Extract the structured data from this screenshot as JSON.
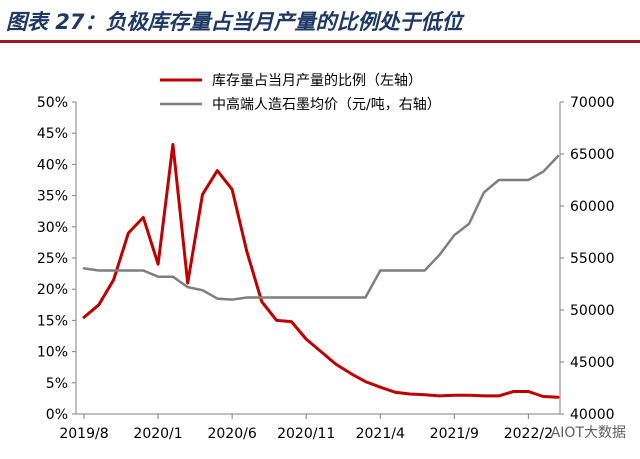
{
  "title": "图表 27：负极库存量占当月产量的比例处于低位",
  "watermark": "AIOT大数据",
  "colors": {
    "title": "#1f3864",
    "accent": "#9b1b1e",
    "inventory_ratio": "#c00000",
    "graphite_price": "#7f7f7f"
  },
  "chart_data": {
    "type": "line",
    "grid": false,
    "legend_position": "top-center",
    "x_tick_labels": [
      "2019/8",
      "2020/1",
      "2020/6",
      "2020/11",
      "2021/4",
      "2021/9",
      "2022/2"
    ],
    "ylim_left": [
      0,
      50
    ],
    "y_left_ticks": [
      "0%",
      "5%",
      "10%",
      "15%",
      "20%",
      "25%",
      "30%",
      "35%",
      "40%",
      "45%",
      "50%"
    ],
    "ylim_right": [
      40000,
      70000
    ],
    "y_right_ticks": [
      "40000",
      "45000",
      "50000",
      "55000",
      "60000",
      "65000",
      "70000"
    ],
    "series": [
      {
        "name": "库存量占当月产量的比例（左轴）",
        "axis": "left",
        "color": "#c00000",
        "x": [
          "2019-08",
          "2019-09",
          "2019-10",
          "2019-11",
          "2019-12",
          "2020-01",
          "2020-02",
          "2020-03",
          "2020-04",
          "2020-05",
          "2020-06",
          "2020-07",
          "2020-08",
          "2020-09",
          "2020-10",
          "2020-11",
          "2020-12",
          "2021-01",
          "2021-02",
          "2021-03",
          "2021-04",
          "2021-05",
          "2021-06",
          "2021-07",
          "2021-08",
          "2021-09",
          "2021-10",
          "2021-11",
          "2021-12",
          "2022-01",
          "2022-02",
          "2022-03",
          "2022-04"
        ],
        "values": [
          15.5,
          17.5,
          21.5,
          29,
          31.5,
          24,
          43.2,
          21,
          35.2,
          39,
          36,
          26,
          18,
          15,
          14.8,
          12,
          10,
          8,
          6.5,
          5.2,
          4.3,
          3.5,
          3.2,
          3.1,
          2.9,
          3.0,
          3.0,
          2.9,
          2.9,
          3.6,
          3.6,
          2.8,
          2.7
        ]
      },
      {
        "name": "中高端人造石墨均价（元/吨，右轴）",
        "axis": "right",
        "color": "#7f7f7f",
        "x": [
          "2019-08",
          "2019-09",
          "2019-10",
          "2019-11",
          "2019-12",
          "2020-01",
          "2020-02",
          "2020-03",
          "2020-04",
          "2020-05",
          "2020-06",
          "2020-07",
          "2020-08",
          "2020-09",
          "2020-10",
          "2020-11",
          "2020-12",
          "2021-01",
          "2021-02",
          "2021-03",
          "2021-04",
          "2021-05",
          "2021-06",
          "2021-07",
          "2021-08",
          "2021-09",
          "2021-10",
          "2021-11",
          "2021-12",
          "2022-01",
          "2022-02",
          "2022-03",
          "2022-04"
        ],
        "values": [
          54000,
          53800,
          53800,
          53800,
          53800,
          53200,
          53200,
          52200,
          51900,
          51100,
          51000,
          51200,
          51200,
          51200,
          51200,
          51200,
          51200,
          51200,
          51200,
          51200,
          53800,
          53800,
          53800,
          53800,
          55300,
          57200,
          58300,
          61300,
          62500,
          62500,
          62500,
          63300,
          64800
        ]
      }
    ]
  }
}
